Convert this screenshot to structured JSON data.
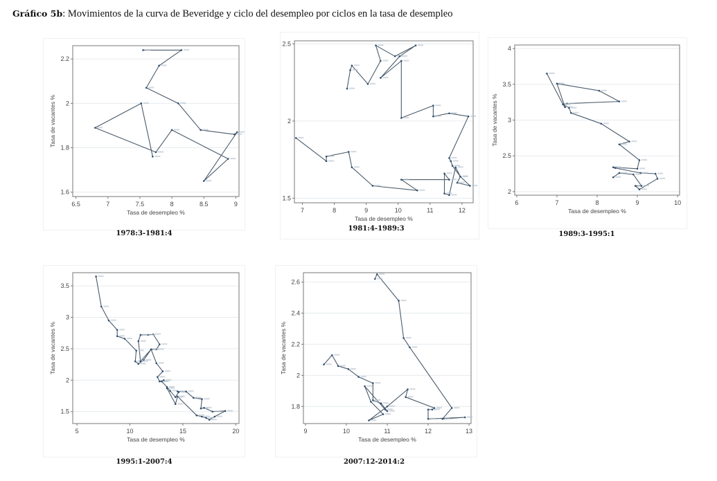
{
  "page": {
    "title_bold": "Gráfico 5b",
    "title_rest": ": Movimientos de la curva de Beveridge y ciclo del desempleo por ciclos en la tasa de desempleo"
  },
  "style": {
    "line_color": "#4a5a6a",
    "marker_color": "#2f4f6f",
    "grid_color": "#e6ebef",
    "frame_color": "#777777"
  },
  "chart_data": [
    {
      "type": "line",
      "caption": "1978:3-1981:4",
      "xlabel": "Tasa de desempleo %",
      "ylabel": "Tasa de vacantes %",
      "xlim": [
        6.45,
        9.05
      ],
      "ylim": [
        1.58,
        2.26
      ],
      "xticks": [
        6.5,
        7,
        7.5,
        8,
        8.5,
        9
      ],
      "xtick_labels": [
        "6.5",
        "7",
        "7.5",
        "8",
        "8.5",
        "9"
      ],
      "yticks": [
        1.6,
        1.8,
        2,
        2.2
      ],
      "ytick_labels": [
        "1.6",
        "1.8",
        "2",
        "2.2"
      ],
      "grid": true,
      "x": [
        7.55,
        8.15,
        7.8,
        7.6,
        8.1,
        8.45,
        8.98,
        9.02,
        8.5,
        8.88,
        8.0,
        7.75,
        6.8,
        7.52,
        7.7
      ],
      "y": [
        2.24,
        2.24,
        2.17,
        2.07,
        2.0,
        1.88,
        1.86,
        1.87,
        1.65,
        1.75,
        1.88,
        1.78,
        1.89,
        2.0,
        1.76
      ]
    },
    {
      "type": "line",
      "caption": "1981:4-1989:3",
      "xlabel": "Tasa de desempleo %",
      "ylabel": "Tasa de vacantes %",
      "xlim": [
        6.75,
        12.35
      ],
      "ylim": [
        1.47,
        2.52
      ],
      "xticks": [
        7,
        8,
        9,
        10,
        11,
        12
      ],
      "xtick_labels": [
        "7",
        "8",
        "9",
        "10",
        "11",
        "12"
      ],
      "yticks": [
        1.5,
        2,
        2.5
      ],
      "ytick_labels": [
        "1.5",
        "2",
        "2.5"
      ],
      "grid": true,
      "x": [
        8.4,
        8.5,
        8.55,
        9.05,
        9.45,
        9.3,
        9.9,
        10.55,
        10.05,
        9.45,
        10.1,
        10.1,
        11.1,
        11.1,
        11.6,
        12.2,
        11.6,
        11.65,
        11.7,
        11.95,
        12.25,
        11.85,
        11.95,
        11.8,
        11.6,
        11.45,
        11.45,
        11.6,
        10.1,
        10.6,
        9.2,
        8.55,
        8.45,
        7.75,
        7.75,
        6.8
      ],
      "y": [
        2.21,
        2.33,
        2.36,
        2.24,
        2.39,
        2.49,
        2.42,
        2.49,
        2.42,
        2.28,
        2.39,
        2.02,
        2.1,
        2.03,
        2.05,
        2.03,
        1.76,
        1.74,
        1.71,
        1.64,
        1.58,
        1.6,
        1.64,
        1.7,
        1.52,
        1.53,
        1.66,
        1.62,
        1.62,
        1.55,
        1.58,
        1.7,
        1.8,
        1.77,
        1.74,
        1.89
      ]
    },
    {
      "type": "line",
      "caption": "1989:3-1995:1",
      "xlabel": "Tasa de desempleo %",
      "ylabel": "Tasa de vacantes %",
      "xlim": [
        5.95,
        10.05
      ],
      "ylim": [
        1.95,
        4.05
      ],
      "xticks": [
        6,
        7,
        8,
        9,
        10
      ],
      "xtick_labels": [
        "6",
        "7",
        "8",
        "9",
        "10"
      ],
      "yticks": [
        2,
        2.5,
        3,
        3.5,
        4
      ],
      "ytick_labels": [
        "2",
        "2.5",
        "3",
        "3.5",
        "4"
      ],
      "grid": true,
      "x": [
        6.75,
        7.15,
        7.2,
        7.0,
        8.05,
        8.55,
        7.25,
        7.15,
        7.3,
        7.35,
        8.1,
        8.8,
        8.55,
        9.05,
        9.0,
        8.4,
        8.45,
        9.08,
        9.45,
        9.5,
        9.05,
        8.95,
        9.1,
        8.9,
        8.55,
        8.4
      ],
      "y": [
        3.65,
        3.22,
        3.18,
        3.51,
        3.41,
        3.26,
        3.23,
        3.22,
        3.17,
        3.1,
        2.95,
        2.7,
        2.66,
        2.44,
        2.32,
        2.34,
        2.33,
        2.26,
        2.25,
        2.18,
        2.03,
        2.08,
        2.08,
        2.24,
        2.26,
        2.2
      ]
    },
    {
      "type": "line",
      "caption": "1995:1-2007:4",
      "xlabel": "Tasa de desempleo %",
      "ylabel": "Tasa de vacantes %",
      "xlim": [
        4.6,
        20.3
      ],
      "ylim": [
        1.31,
        3.71
      ],
      "xticks": [
        5,
        10,
        15,
        20
      ],
      "xtick_labels": [
        "5",
        "10",
        "15",
        "20"
      ],
      "yticks": [
        1.5,
        2,
        2.5,
        3,
        3.5
      ],
      "ytick_labels": [
        "1.5",
        "2",
        "2.5",
        "3",
        "3.5"
      ],
      "grid": true,
      "x": [
        6.8,
        7.3,
        8.0,
        8.8,
        8.8,
        9.5,
        10.6,
        10.5,
        10.8,
        11.3,
        12.0,
        12.5,
        12.8,
        12.2,
        11.7,
        11.0,
        10.8,
        11.0,
        12.0,
        12.5,
        13.1,
        12.6,
        12.8,
        13.2,
        13.0,
        13.5,
        13.8,
        14.3,
        14.6,
        14.5,
        15.3,
        16.0,
        16.8,
        16.7,
        17.0,
        17.8,
        19.0,
        18.0,
        17.5,
        17.2,
        16.8,
        16.3,
        14.5,
        14.3,
        13.5
      ],
      "y": [
        3.65,
        3.17,
        2.95,
        2.8,
        2.7,
        2.66,
        2.47,
        2.3,
        2.26,
        2.32,
        2.49,
        2.49,
        2.57,
        2.73,
        2.72,
        2.72,
        2.62,
        2.3,
        2.49,
        2.27,
        2.14,
        2.05,
        1.98,
        2.0,
        1.98,
        1.89,
        1.83,
        1.73,
        1.81,
        1.82,
        1.82,
        1.72,
        1.7,
        1.55,
        1.56,
        1.5,
        1.51,
        1.42,
        1.37,
        1.4,
        1.42,
        1.44,
        1.74,
        1.62,
        1.87
      ]
    },
    {
      "type": "line",
      "caption": "2007:12-2014:2",
      "xlabel": "Tasa de desempleo %",
      "ylabel": "Tasa de vacantes %",
      "xlim": [
        8.95,
        13.05
      ],
      "ylim": [
        1.69,
        2.66
      ],
      "xticks": [
        9,
        10,
        11,
        12,
        13
      ],
      "xtick_labels": [
        "9",
        "10",
        "11",
        "12",
        "13"
      ],
      "yticks": [
        1.8,
        2,
        2.2,
        2.4,
        2.6
      ],
      "ytick_labels": [
        "1.8",
        "2",
        "2.2",
        "2.4",
        "2.6"
      ],
      "grid": true,
      "x": [
        10.7,
        10.75,
        11.28,
        11.4,
        11.55,
        12.58,
        12.35,
        12.9,
        12.0,
        12.0,
        12.1,
        12.15,
        11.45,
        11.5,
        11.0,
        10.55,
        10.9,
        10.6,
        10.45,
        10.95,
        11.0,
        10.85,
        10.65,
        10.65,
        10.3,
        10.05,
        9.8,
        9.65,
        9.45
      ],
      "y": [
        2.62,
        2.65,
        2.48,
        2.24,
        2.18,
        1.79,
        1.72,
        1.73,
        1.72,
        1.78,
        1.78,
        1.79,
        1.86,
        1.91,
        1.8,
        1.71,
        1.75,
        1.83,
        1.93,
        1.78,
        1.77,
        1.82,
        1.84,
        1.95,
        1.99,
        2.04,
        2.06,
        2.13,
        2.07
      ]
    }
  ]
}
